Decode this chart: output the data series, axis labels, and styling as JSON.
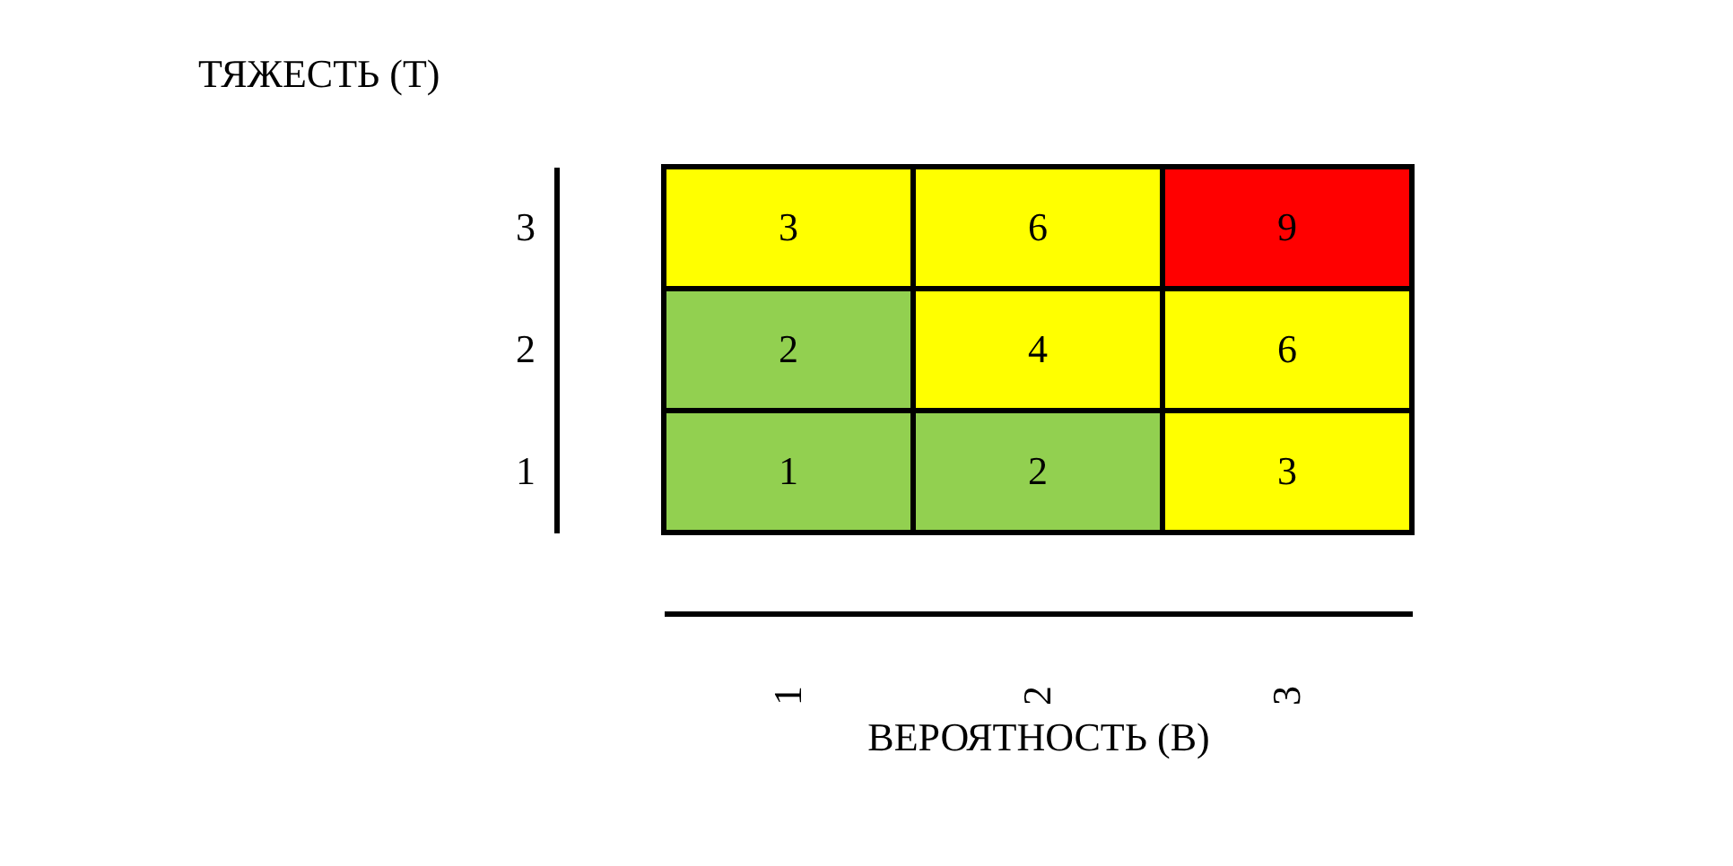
{
  "chart_data": {
    "type": "heatmap",
    "xlabel": "ВЕРОЯТНОСТЬ (В)",
    "ylabel": "ТЯЖЕСТЬ (Т)",
    "categories": [
      "1",
      "2",
      "3"
    ],
    "y_categories": [
      "3",
      "2",
      "1"
    ],
    "cells": [
      [
        3,
        6,
        9
      ],
      [
        2,
        4,
        6
      ],
      [
        1,
        2,
        3
      ]
    ],
    "colors": [
      [
        "#ffff00",
        "#ffff00",
        "#ff0000"
      ],
      [
        "#92d050",
        "#ffff00",
        "#ffff00"
      ],
      [
        "#92d050",
        "#92d050",
        "#ffff00"
      ]
    ],
    "data_labels": true
  }
}
